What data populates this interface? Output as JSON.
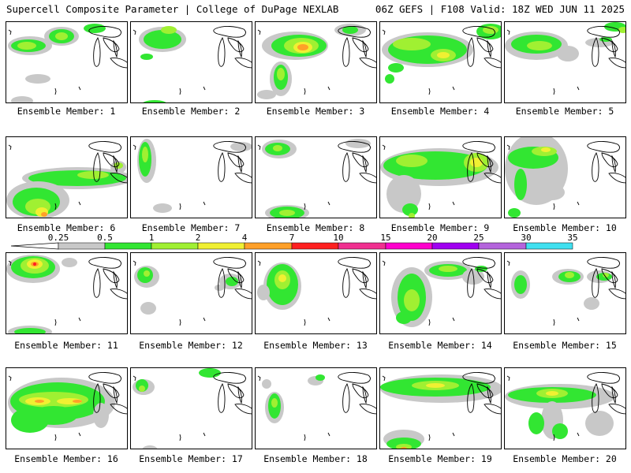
{
  "header": {
    "title_left": "Supercell Composite Parameter | College of DuPage NEXLAB",
    "title_right": "06Z GEFS | F108 Valid: 18Z WED JUN 11 2025"
  },
  "members": [
    {
      "label": "Ensemble Member: 1"
    },
    {
      "label": "Ensemble Member: 2"
    },
    {
      "label": "Ensemble Member: 3"
    },
    {
      "label": "Ensemble Member: 4"
    },
    {
      "label": "Ensemble Member: 5"
    },
    {
      "label": "Ensemble Member: 6"
    },
    {
      "label": "Ensemble Member: 7"
    },
    {
      "label": "Ensemble Member: 8"
    },
    {
      "label": "Ensemble Member: 9"
    },
    {
      "label": "Ensemble Member: 10"
    },
    {
      "label": "Ensemble Member: 11"
    },
    {
      "label": "Ensemble Member: 12"
    },
    {
      "label": "Ensemble Member: 13"
    },
    {
      "label": "Ensemble Member: 14"
    },
    {
      "label": "Ensemble Member: 15"
    },
    {
      "label": "Ensemble Member: 16"
    },
    {
      "label": "Ensemble Member: 17"
    },
    {
      "label": "Ensemble Member: 18"
    },
    {
      "label": "Ensemble Member: 19"
    },
    {
      "label": "Ensemble Member: 20"
    }
  ],
  "colorbar": {
    "thresholds": [
      "0.25",
      "0.5",
      "1",
      "2",
      "4",
      "7",
      "10",
      "15",
      "20",
      "25",
      "30",
      "35"
    ],
    "colors": [
      "#c8c8c8",
      "#32e632",
      "#a0f032",
      "#f0f032",
      "#ffa028",
      "#ff2020",
      "#f03090",
      "#ff00cc",
      "#a000f0",
      "#b464dc",
      "#40e0f0"
    ]
  }
}
